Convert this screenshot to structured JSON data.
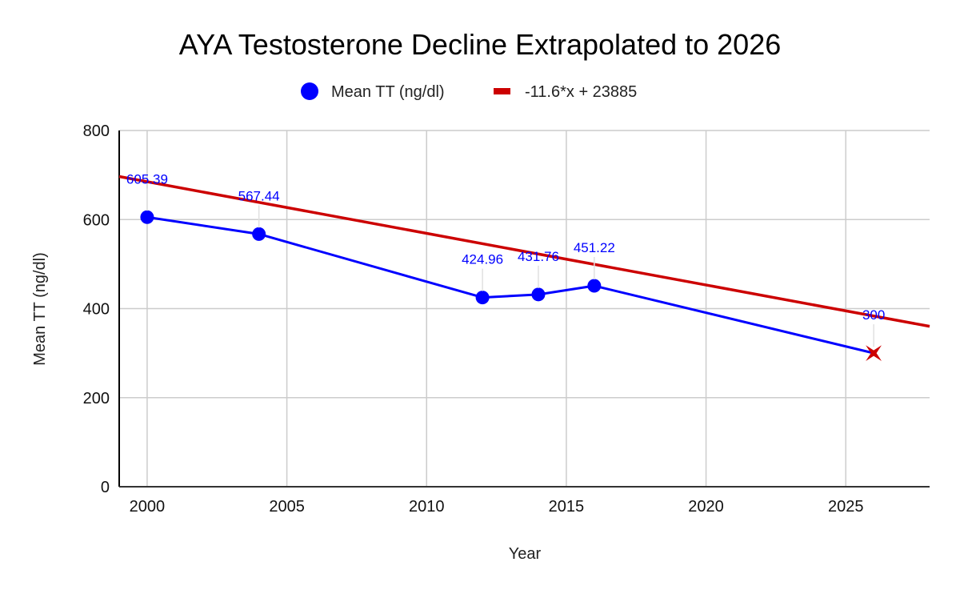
{
  "chart_data": {
    "type": "line",
    "title": "AYA Testosterone Decline Extrapolated to 2026",
    "xlabel": "Year",
    "ylabel": "Mean TT (ng/dl)",
    "xlim": [
      1999,
      2028
    ],
    "ylim": [
      0,
      800
    ],
    "x_ticks": [
      2000,
      2005,
      2010,
      2015,
      2020,
      2025
    ],
    "y_ticks": [
      0,
      200,
      400,
      600,
      800
    ],
    "grid": true,
    "legend_position": "top",
    "series": [
      {
        "name": "Mean TT (ng/dl)",
        "color": "#0000ff",
        "points": [
          {
            "x": 2000,
            "y": 605.39,
            "label": "605.39"
          },
          {
            "x": 2004,
            "y": 567.44,
            "label": "567.44"
          },
          {
            "x": 2012,
            "y": 424.96,
            "label": "424.96"
          },
          {
            "x": 2014,
            "y": 431.76,
            "label": "431.76"
          },
          {
            "x": 2016,
            "y": 451.22,
            "label": "451.22"
          },
          {
            "x": 2026,
            "y": 300,
            "label": "300",
            "marker": "star",
            "marker_color": "#cc0000"
          }
        ]
      },
      {
        "name": "-11.6*x + 23885",
        "type": "trendline",
        "color": "#cc0000",
        "slope": -11.6,
        "intercept": 23885
      }
    ]
  }
}
